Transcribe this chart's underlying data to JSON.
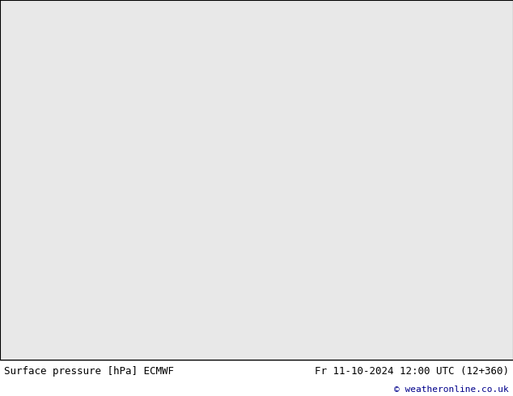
{
  "title_left": "Surface pressure [hPa] ECMWF",
  "title_right": "Fr 11-10-2024 12:00 UTC (12+360)",
  "copyright": "© weatheronline.co.uk",
  "bg_color": "#ffffff",
  "land_color": "#aad48a",
  "water_color": "#e8e8e8",
  "ocean_color": "#e8e8e8",
  "glacier_color": "#d8d8d8",
  "lake_color": "#e8e8e8",
  "border_color": "#888888",
  "coast_color": "#666666",
  "contour_color_blue": "#0000ff",
  "contour_color_black": "#000000",
  "contour_color_red": "#ff0000",
  "footer_bg": "#c8c8c8",
  "footer_text_color": "#000000",
  "copyright_color": "#00008b",
  "map_extent_lon_min": -178,
  "map_extent_lon_max": -45,
  "map_extent_lat_min": 18,
  "map_extent_lat_max": 83,
  "pressure_base": 1013.0,
  "contour_interval": 4,
  "contour_min": 984,
  "contour_max": 1028
}
